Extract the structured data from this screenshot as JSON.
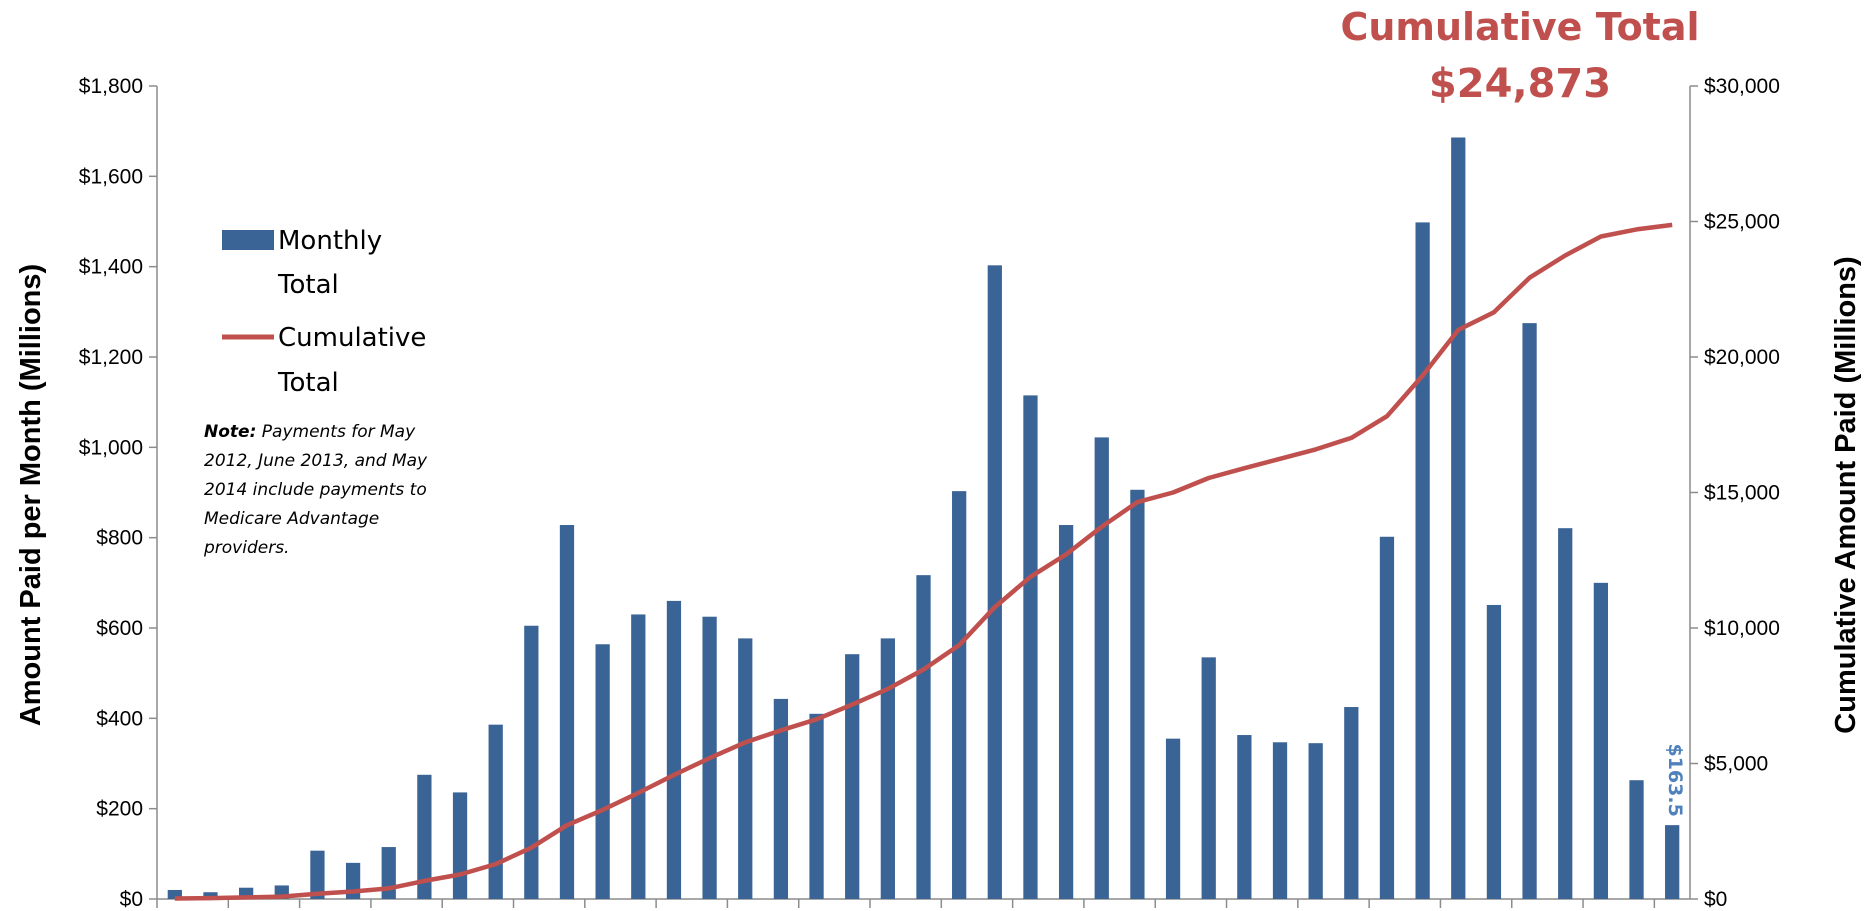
{
  "headline": {
    "line1": "Cumulative Total",
    "line2": "$24,873"
  },
  "legend": {
    "monthly_line1": "Monthly",
    "monthly_line2": "Total",
    "cumulative_line1": "Cumulative",
    "cumulative_line2": "Total"
  },
  "note": {
    "label": "Note:",
    "line1": " Payments for May",
    "line2": "2012, June 2013, and May",
    "line3": "2014 include payments to",
    "line4": "Medicare Advantage",
    "line5": "providers."
  },
  "last_bar_label": "$163.5",
  "colors": {
    "bars": "#3a6495",
    "line": "#c0504d",
    "label_blue": "#4f81bd"
  },
  "chart_data": {
    "type": "bar",
    "ylabel": "Amount Paid per Month (Millions)",
    "y2label": "Cumulative Amount Paid (Millions)",
    "ylim": [
      0,
      1800
    ],
    "y2lim": [
      0,
      30000
    ],
    "yticks": [
      "$0",
      "$200",
      "$400",
      "$600",
      "$800",
      "$1,000",
      "$1,200",
      "$1,400",
      "$1,600",
      "$1,800"
    ],
    "y2ticks": [
      "$0",
      "$5,000",
      "$10,000",
      "$15,000",
      "$20,000",
      "$25,000",
      "$30,000"
    ],
    "legend_position": "top-left",
    "grid": false,
    "series": [
      {
        "name": "Monthly Total",
        "type": "bar",
        "values": [
          20,
          15,
          25,
          30,
          107,
          80,
          115,
          275,
          236,
          386,
          605,
          828,
          564,
          630,
          660,
          625,
          577,
          443,
          410,
          542,
          577,
          717,
          903,
          1403,
          1115,
          828,
          1022,
          906,
          355,
          535,
          363,
          347,
          345,
          425,
          802,
          1498,
          1686,
          651,
          1275,
          821,
          700,
          263,
          163.5
        ]
      },
      {
        "name": "Cumulative Total",
        "type": "line",
        "values": [
          20,
          35,
          60,
          90,
          197,
          277,
          392,
          667,
          903,
          1289,
          1894,
          2722,
          3286,
          3916,
          4576,
          5201,
          5778,
          6221,
          6631,
          7173,
          7750,
          8467,
          9370,
          10773,
          11888,
          12716,
          13738,
          14644,
          14999,
          15534,
          15897,
          16244,
          16589,
          17014,
          17816,
          19314,
          21000,
          21651,
          22926,
          23747,
          24447,
          24710,
          24873
        ]
      }
    ]
  }
}
